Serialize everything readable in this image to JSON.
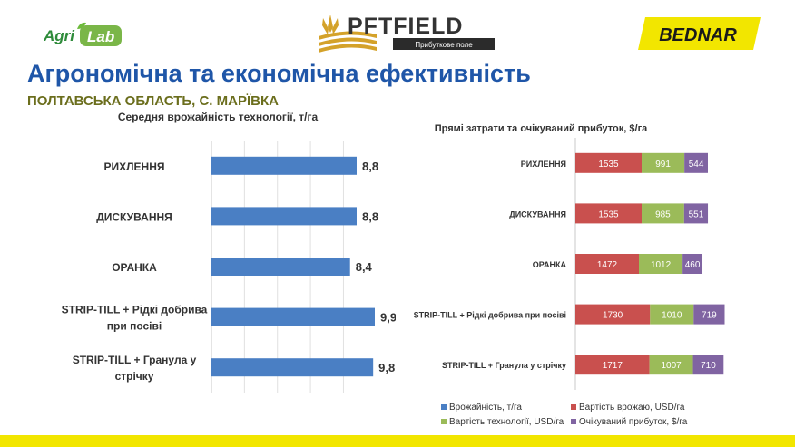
{
  "header": {
    "agrilab_logo": {
      "word1": "Agri",
      "word2": "Lab"
    },
    "pft_logo": {
      "name": "PFTFIELD",
      "tagline": "Прибуткове поле"
    },
    "bednar_logo": "BEDNAR",
    "title": "Агрономічна та економічна ефективність",
    "subtitle": "ПОЛТАВСЬКА ОБЛАСТЬ, С. МАРЇВКА"
  },
  "colors": {
    "title": "#1f56a8",
    "subtitle": "#6b6e1d",
    "footer": "#f2e600",
    "yield": "#4a7fc4",
    "cost_plowing": "#c9504e",
    "cost_tech": "#9bbb59",
    "profit": "#8064a2"
  },
  "chart_data": [
    {
      "type": "bar",
      "orientation": "horizontal",
      "title": "Середня врожайність технології, т/га",
      "categories": [
        [
          "РИХЛЕННЯ"
        ],
        [
          "ДИСКУВАННЯ"
        ],
        [
          "ОРАНКА"
        ],
        [
          "STRIP-TILL + Рідкі добрива",
          "при посіві"
        ],
        [
          "STRIP-TILL + Гранула у",
          "стрічку"
        ]
      ],
      "values": [
        8.8,
        8.8,
        8.4,
        9.9,
        9.8
      ],
      "value_labels": [
        "8,8",
        "8,8",
        "8,4",
        "9,9",
        "9,8"
      ],
      "xlim": [
        0,
        10.5
      ],
      "grid": true
    },
    {
      "type": "bar",
      "orientation": "horizontal",
      "stacked": true,
      "title": "Прямі затрати та очікуваний прибуток, $/га",
      "categories": [
        "РИХЛЕННЯ",
        "ДИСКУВАННЯ",
        "ОРАНКА",
        "STRIP-TILL + Рідкі добрива при посіві",
        "STRIP-TILL + Гранула у стрічку"
      ],
      "series": [
        {
          "name": "Вартість врожаю, USD/га",
          "values": [
            1535,
            1535,
            1472,
            1730,
            1717
          ]
        },
        {
          "name": "Вартість технології, USD/га",
          "values": [
            991,
            985,
            1012,
            1010,
            1007
          ]
        },
        {
          "name": "Очікуваний прибуток, $/га",
          "values": [
            544,
            551,
            460,
            719,
            710
          ]
        }
      ],
      "legend": [
        "Врожайність, т/га",
        "Вартість врожаю, USD/га",
        "Вартість технології, USD/га",
        "Очікуваний прибуток, $/га"
      ],
      "legend_position": "bottom",
      "xlim": [
        0,
        4600
      ]
    }
  ]
}
